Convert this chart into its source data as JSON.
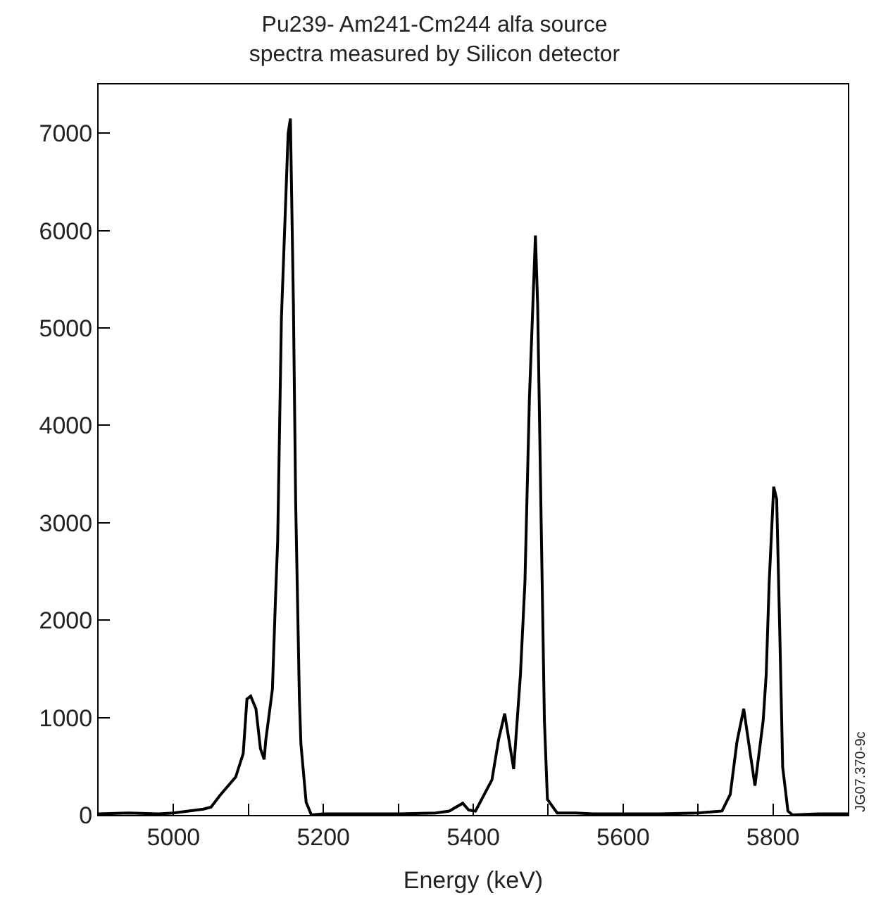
{
  "chart_data": {
    "type": "line",
    "title": "Pu239- Am241-Cm244 alfa source\nspectra measured by Silicon detector",
    "xlabel": "Energy (keV)",
    "annotations": [
      "JG07.370-9c"
    ],
    "x": [
      4900,
      4940,
      4980,
      5000,
      5020,
      5040,
      5050,
      5062,
      5083,
      5093,
      5098,
      5103,
      5110,
      5116,
      5121,
      5123,
      5132,
      5136,
      5139,
      5144,
      5153,
      5156,
      5160,
      5163,
      5168,
      5170,
      5177,
      5184,
      5200,
      5250,
      5300,
      5350,
      5368,
      5386,
      5394,
      5403,
      5425,
      5434,
      5442,
      5454,
      5463,
      5469,
      5475,
      5483,
      5486,
      5491,
      5495,
      5499,
      5512,
      5537,
      5560,
      5600,
      5650,
      5700,
      5732,
      5743,
      5752,
      5761,
      5776,
      5787,
      5791,
      5795,
      5801,
      5805,
      5809,
      5813,
      5820,
      5826,
      5860,
      5900
    ],
    "series": [
      {
        "color": "#000000",
        "values": [
          10,
          20,
          10,
          20,
          40,
          60,
          80,
          200,
          390,
          630,
          1190,
          1220,
          1090,
          680,
          570,
          760,
          1290,
          2200,
          2810,
          5100,
          7000,
          7150,
          5250,
          3220,
          1190,
          730,
          130,
          0,
          10,
          10,
          10,
          20,
          40,
          120,
          50,
          40,
          360,
          780,
          1040,
          470,
          1440,
          2390,
          4280,
          5950,
          5230,
          2860,
          970,
          160,
          20,
          20,
          10,
          10,
          10,
          20,
          40,
          210,
          750,
          1090,
          300,
          970,
          1440,
          2390,
          3370,
          3240,
          1915,
          490,
          40,
          0,
          10,
          10
        ]
      }
    ],
    "xlim": [
      4900,
      5900
    ],
    "ylim": [
      0,
      7500
    ],
    "xticks": [
      5000,
      {
        "value": 5100,
        "label": null
      },
      5200,
      {
        "value": 5300,
        "label": null
      },
      5400,
      {
        "value": 5500,
        "label": null
      },
      5600,
      {
        "value": 5700,
        "label": null
      },
      5800
    ],
    "yticks": [
      0,
      1000,
      2000,
      3000,
      4000,
      5000,
      6000,
      7000
    ],
    "grid": false,
    "marker": "none",
    "line_style": "solid"
  }
}
